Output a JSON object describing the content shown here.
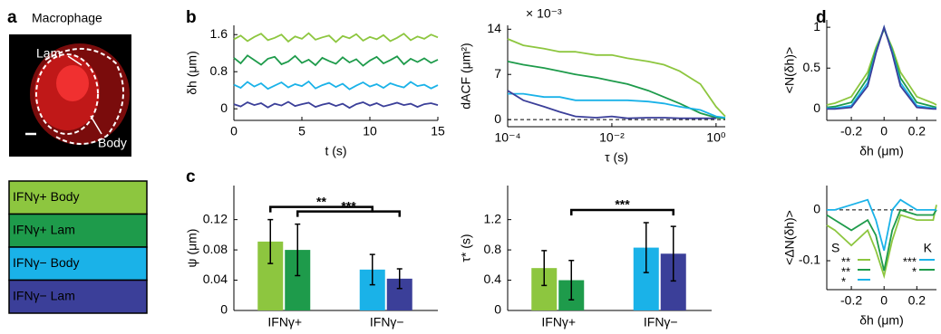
{
  "panel_labels": [
    "a",
    "b",
    "c",
    "d"
  ],
  "panel_a": {
    "title": "Macrophage",
    "image_labels": [
      "Lam",
      "Body"
    ],
    "legend": [
      {
        "name": "IFNγ+ Body",
        "color": "#8dc63f"
      },
      {
        "name": "IFNγ+ Lam",
        "color": "#1e9b4b"
      },
      {
        "name": "IFNγ− Body",
        "color": "#1ab2e8"
      },
      {
        "name": "IFNγ− Lam",
        "color": "#3b3f99"
      }
    ]
  },
  "chart_data": [
    {
      "type": "line",
      "xlabel": "t (s)",
      "ylabel": "δh (μm)",
      "x": [
        0,
        0.5,
        1,
        1.5,
        2,
        2.5,
        3,
        3.5,
        4,
        4.5,
        5,
        5.5,
        6,
        6.5,
        7,
        7.5,
        8,
        8.5,
        9,
        9.5,
        10,
        10.5,
        11,
        11.5,
        12,
        12.5,
        13,
        13.5,
        14,
        14.5,
        15
      ],
      "series": [
        {
          "color": "#8dc63f",
          "values": [
            1.5,
            1.58,
            1.46,
            1.55,
            1.62,
            1.48,
            1.53,
            1.6,
            1.45,
            1.56,
            1.51,
            1.63,
            1.49,
            1.54,
            1.58,
            1.44,
            1.57,
            1.52,
            1.61,
            1.47,
            1.55,
            1.5,
            1.59,
            1.46,
            1.53,
            1.62,
            1.48,
            1.56,
            1.51,
            1.6,
            1.54
          ]
        },
        {
          "color": "#1e9b4b",
          "values": [
            1.1,
            0.98,
            1.15,
            1.05,
            0.95,
            1.08,
            1.12,
            0.96,
            1.02,
            1.14,
            0.99,
            1.06,
            0.94,
            1.1,
            1.03,
            0.97,
            1.11,
            1.0,
            1.07,
            0.93,
            1.04,
            1.12,
            0.98,
            1.05,
            1.13,
            0.96,
            1.08,
            1.01,
            1.09,
            0.99,
            1.06
          ]
        },
        {
          "color": "#1ab2e8",
          "values": [
            0.52,
            0.45,
            0.58,
            0.48,
            0.55,
            0.43,
            0.5,
            0.57,
            0.46,
            0.53,
            0.49,
            0.59,
            0.44,
            0.51,
            0.56,
            0.47,
            0.54,
            0.42,
            0.5,
            0.57,
            0.48,
            0.53,
            0.45,
            0.55,
            0.5,
            0.46,
            0.58,
            0.49,
            0.52,
            0.44,
            0.51
          ]
        },
        {
          "color": "#3b3f99",
          "values": [
            0.1,
            0.05,
            0.14,
            0.08,
            0.12,
            0.03,
            0.11,
            0.07,
            0.15,
            0.06,
            0.1,
            0.13,
            0.04,
            0.09,
            0.12,
            0.06,
            0.11,
            0.02,
            0.1,
            0.14,
            0.07,
            0.12,
            0.05,
            0.09,
            0.13,
            0.08,
            0.11,
            0.04,
            0.1,
            0.12,
            0.08
          ]
        }
      ],
      "xlim": [
        0,
        15
      ],
      "xticks": [
        0,
        5,
        10,
        15
      ],
      "ylim": [
        -0.25,
        1.8
      ],
      "yticks": [
        0,
        0.8,
        1.6
      ]
    },
    {
      "type": "line",
      "log_x": true,
      "xlabel": "τ (s)",
      "ylabel": "dACF (μm²)",
      "multiplier": "× 10⁻³",
      "x": [
        0.0001,
        0.0002,
        0.0005,
        0.001,
        0.002,
        0.005,
        0.01,
        0.02,
        0.05,
        0.1,
        0.2,
        0.5,
        1,
        1.5
      ],
      "series": [
        {
          "color": "#8dc63f",
          "values": [
            12.5,
            11.5,
            11,
            10.5,
            10.5,
            10,
            10,
            9.5,
            9,
            8.5,
            7.5,
            5.5,
            2,
            0.5
          ]
        },
        {
          "color": "#1e9b4b",
          "values": [
            9,
            8.5,
            8,
            7.5,
            7,
            6.5,
            6,
            5.5,
            4.5,
            3.5,
            2.5,
            1,
            0.3,
            0.2
          ]
        },
        {
          "color": "#1ab2e8",
          "values": [
            4,
            4,
            3.5,
            3.5,
            3,
            3,
            3,
            3,
            2.8,
            2.5,
            2,
            1.5,
            0.5,
            0.3
          ]
        },
        {
          "color": "#3b3f99",
          "values": [
            4.5,
            3,
            2,
            1.2,
            0.5,
            0.3,
            0.5,
            0.2,
            0.3,
            0.3,
            0.2,
            0.2,
            0.2,
            null
          ]
        }
      ],
      "xlim": [
        0.0001,
        1.5
      ],
      "xticks": [
        {
          "value": 0.0001,
          "label": "10⁻⁴"
        },
        {
          "value": 0.01,
          "label": "10⁻²"
        },
        {
          "value": 1,
          "label": "10⁰"
        }
      ],
      "ylim": [
        -1.1,
        14.6
      ],
      "yticks": [
        0,
        7,
        14
      ],
      "reference_line": 0
    },
    {
      "type": "bar",
      "ylabel": "ψ (μm)",
      "categories": [
        "IFNγ+",
        "IFNγ−"
      ],
      "series": [
        {
          "color": "#8dc63f",
          "values": [
            0.091,
            null
          ],
          "errors": [
            0.029,
            null
          ]
        },
        {
          "color": "#1e9b4b",
          "values": [
            0.08,
            null
          ],
          "errors": [
            0.034,
            null
          ]
        },
        {
          "color": "#1ab2e8",
          "values": [
            null,
            0.054
          ],
          "errors": [
            null,
            0.02
          ]
        },
        {
          "color": "#3b3f99",
          "values": [
            null,
            0.042
          ],
          "errors": [
            null,
            0.013
          ]
        }
      ],
      "significance": [
        {
          "between": [
            0,
            2
          ],
          "label": "**"
        },
        {
          "between": [
            1,
            3
          ],
          "label": "***"
        }
      ],
      "ylim": [
        0,
        0.165
      ],
      "yticks": [
        0,
        0.04,
        0.08,
        0.12
      ]
    },
    {
      "type": "bar",
      "ylabel": "τ* (s)",
      "categories": [
        "IFNγ+",
        "IFNγ−"
      ],
      "series": [
        {
          "color": "#8dc63f",
          "values": [
            0.56,
            null
          ],
          "errors": [
            0.23,
            null
          ]
        },
        {
          "color": "#1e9b4b",
          "values": [
            0.4,
            null
          ],
          "errors": [
            0.26,
            null
          ]
        },
        {
          "color": "#1ab2e8",
          "values": [
            null,
            0.83
          ],
          "errors": [
            null,
            0.33
          ]
        },
        {
          "color": "#3b3f99",
          "values": [
            null,
            0.75
          ],
          "errors": [
            null,
            0.36
          ]
        }
      ],
      "significance": [
        {
          "between": [
            1,
            3
          ],
          "label": "***"
        }
      ],
      "ylim": [
        0,
        1.65
      ],
      "yticks": [
        0,
        0.4,
        0.8,
        1.2
      ]
    },
    {
      "type": "line",
      "xlabel": "δh (μm)",
      "ylabel": "<N(δh)>",
      "x": [
        -0.35,
        -0.3,
        -0.2,
        -0.1,
        -0.05,
        0,
        0.05,
        0.1,
        0.2,
        0.3,
        0.32
      ],
      "series": [
        {
          "color": "#8dc63f",
          "values": [
            0.05,
            0.07,
            0.15,
            0.45,
            0.75,
            0.98,
            0.75,
            0.45,
            0.15,
            0.07,
            0.05
          ]
        },
        {
          "color": "#1e9b4b",
          "values": [
            0.02,
            0.03,
            0.08,
            0.38,
            0.72,
            0.98,
            0.72,
            0.38,
            0.08,
            0.03,
            0.02
          ]
        },
        {
          "color": "#1ab2e8",
          "values": [
            0.01,
            0.01,
            0.04,
            0.32,
            0.7,
            1,
            0.7,
            0.32,
            0.04,
            0.01,
            0.01
          ]
        },
        {
          "color": "#3b3f99",
          "values": [
            0,
            0,
            0.02,
            0.28,
            0.68,
            1,
            0.68,
            0.28,
            0.02,
            0,
            0
          ]
        }
      ],
      "xlim": [
        -0.35,
        0.32
      ],
      "xticks": [
        -0.2,
        0,
        0.2
      ],
      "ylim": [
        -0.14,
        1.09
      ],
      "yticks": [
        0,
        0.5,
        1
      ]
    },
    {
      "type": "line",
      "xlabel": "δh (μm)",
      "ylabel": "<ΔN(δh)>",
      "x": [
        -0.35,
        -0.3,
        -0.2,
        -0.1,
        -0.05,
        0,
        0.05,
        0.1,
        0.2,
        0.3,
        0.32
      ],
      "series": [
        {
          "color": "#8dc63f",
          "values": [
            -0.03,
            -0.04,
            -0.07,
            -0.04,
            -0.08,
            -0.13,
            -0.06,
            -0.01,
            -0.02,
            -0.02,
            0.01
          ]
        },
        {
          "color": "#1e9b4b",
          "values": [
            -0.01,
            -0.02,
            -0.04,
            -0.02,
            -0.05,
            -0.12,
            -0.04,
            0,
            -0.01,
            -0.01,
            0
          ]
        },
        {
          "color": "#1ab2e8",
          "values": [
            0,
            0,
            0.01,
            0.02,
            -0.02,
            -0.08,
            0,
            0.02,
            0,
            0,
            0
          ]
        }
      ],
      "xlim": [
        -0.35,
        0.32
      ],
      "xticks": [
        -0.2,
        0,
        0.2
      ],
      "ylim": [
        -0.157,
        0.048
      ],
      "yticks": [
        -0.1,
        0
      ],
      "reference_line": 0,
      "stat_labels": [
        {
          "label": "S",
          "rows": [
            {
              "text": "**",
              "color": "#8dc63f"
            },
            {
              "text": "**",
              "color": "#1e9b4b"
            },
            {
              "text": "*",
              "color": "#1ab2e8"
            }
          ]
        },
        {
          "label": "K",
          "rows": [
            {
              "text": "***",
              "color": "#1ab2e8"
            },
            {
              "text": "*",
              "color": "#1e9b4b"
            }
          ]
        }
      ]
    }
  ]
}
